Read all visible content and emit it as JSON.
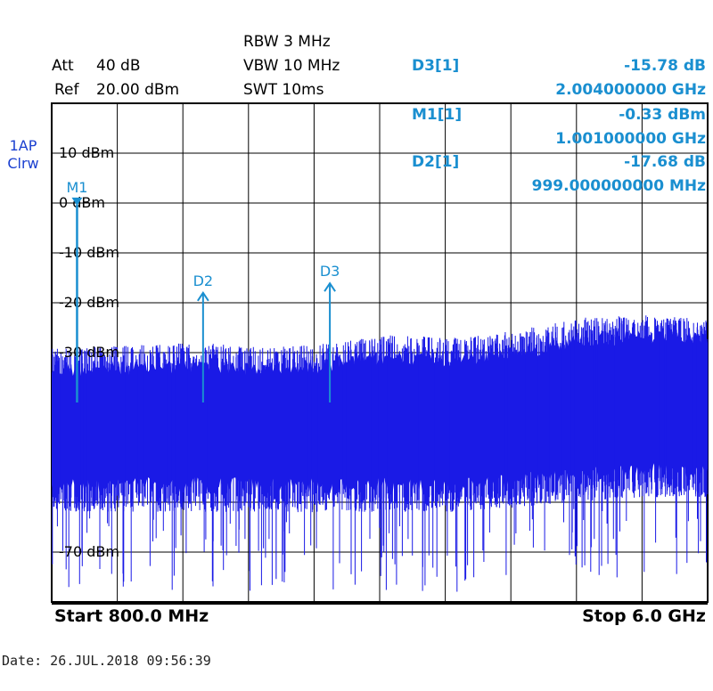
{
  "settings": {
    "att_label": "Att",
    "att_value": "40 dB",
    "ref_label": "Ref",
    "ref_value": "20.00 dBm",
    "rbw": "RBW 3 MHz",
    "vbw": "VBW 10 MHz",
    "swt": "SWT 10ms"
  },
  "trace": {
    "line1": "1AP",
    "line2": "Clrw"
  },
  "marker_table": [
    {
      "name": "D3[1]",
      "value": "-15.78 dB",
      "freq": "2.004000000 GHz"
    },
    {
      "name": "M1[1]",
      "value": "-0.33 dBm",
      "freq": "1.001000000 GHz"
    },
    {
      "name": "D2[1]",
      "value": "-17.68 dB",
      "freq": "999.000000000 MHz"
    }
  ],
  "footer": {
    "start": "Start 800.0 MHz",
    "stop": "Stop 6.0 GHz"
  },
  "date": "Date: 26.JUL.2018  09:56:39",
  "colors": {
    "trace": "#1a1ae6",
    "marker": "#1a8fd0",
    "grid": "#000000"
  },
  "chart_data": {
    "type": "line",
    "xlim": [
      800,
      6000
    ],
    "x_unit": "MHz",
    "ylim": [
      -80,
      20
    ],
    "y_unit": "dBm",
    "y_ticks": [
      {
        "value": 10,
        "label": "10 dBm"
      },
      {
        "value": 0,
        "label": "0 dBm"
      },
      {
        "value": -10,
        "label": "-10 dBm"
      },
      {
        "value": -20,
        "label": "-20 dBm"
      },
      {
        "value": -30,
        "label": "-30 dBm"
      },
      {
        "value": -70,
        "label": "-70 dBm"
      }
    ],
    "grid": true,
    "noise_envelope": {
      "x": [
        800,
        1500,
        2000,
        2500,
        3000,
        3500,
        4000,
        4500,
        5000,
        5500,
        6000
      ],
      "peak": [
        -30,
        -29.5,
        -29,
        -30,
        -29,
        -27.5,
        -28,
        -26.5,
        -24,
        -23.5,
        -24
      ],
      "floor": [
        -60,
        -60,
        -60,
        -60,
        -60,
        -60,
        -60,
        -59,
        -58,
        -57,
        -57
      ]
    },
    "markers": [
      {
        "label": "M1",
        "x": 1001,
        "y": -0.33
      },
      {
        "label": "D2",
        "x": 2000,
        "y": -18.01
      },
      {
        "label": "D3",
        "x": 3005,
        "y": -16.11
      }
    ]
  }
}
